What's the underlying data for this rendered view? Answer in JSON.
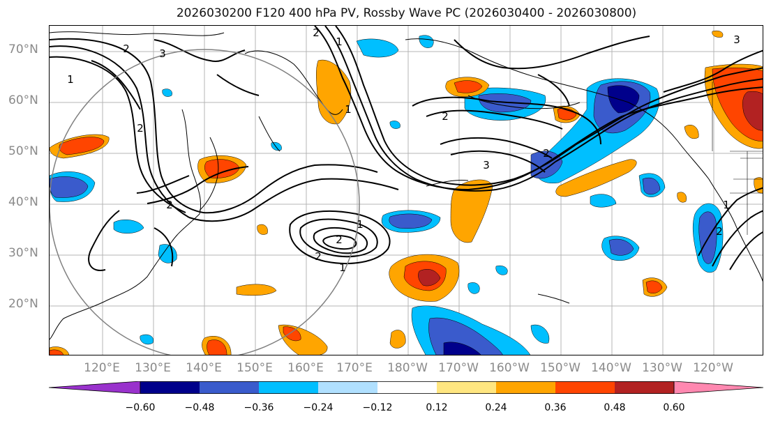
{
  "title": "2026030200 F120 400 hPa PV, Rossby Wave PC (2026030400 - 2026030800)",
  "map": {
    "lat_labels": [
      "70°N",
      "60°N",
      "50°N",
      "40°N",
      "30°N",
      "20°N"
    ],
    "lon_labels": [
      "120°E",
      "130°E",
      "140°E",
      "150°E",
      "160°E",
      "170°E",
      "180°W",
      "170°W",
      "160°W",
      "150°W",
      "140°W",
      "130°W",
      "120°W"
    ],
    "contour_labels": [
      "1",
      "2",
      "3",
      "2",
      "2",
      "1",
      "2",
      "1",
      "2",
      "3",
      "2",
      "1",
      "1",
      "2",
      "2",
      "1",
      "2",
      "3"
    ]
  },
  "colorbar": {
    "colors": [
      "#9932cc",
      "#00008b",
      "#3a5bcc",
      "#00bfff",
      "#b0e0ff",
      "#ffffff",
      "#ffe680",
      "#ffa500",
      "#ff4500",
      "#b22222",
      "#ff88b0"
    ],
    "tick_labels": [
      "−0.60",
      "−0.48",
      "−0.36",
      "−0.24",
      "−0.12",
      "0.12",
      "0.24",
      "0.36",
      "0.48",
      "0.60"
    ]
  }
}
